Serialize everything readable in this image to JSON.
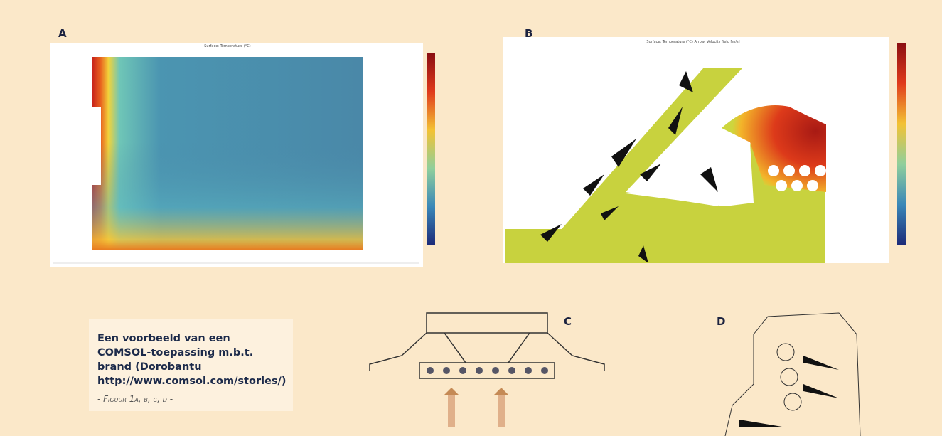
{
  "panels": [
    {
      "label": "A",
      "title": "Surface: Temperature (°C)"
    },
    {
      "label": "B",
      "title": "Surface: Temperature (°C)   Arrow: Velocity field [m/s]"
    },
    {
      "label": "C"
    },
    {
      "label": "D"
    }
  ],
  "caption": {
    "text": "Een voorbeeld van een COMSOL-toepassing m.b.t. brand (Dorobantu http://www.comsol.com/stories/)",
    "figure": "- Figuur 1a, b, c, d -"
  }
}
